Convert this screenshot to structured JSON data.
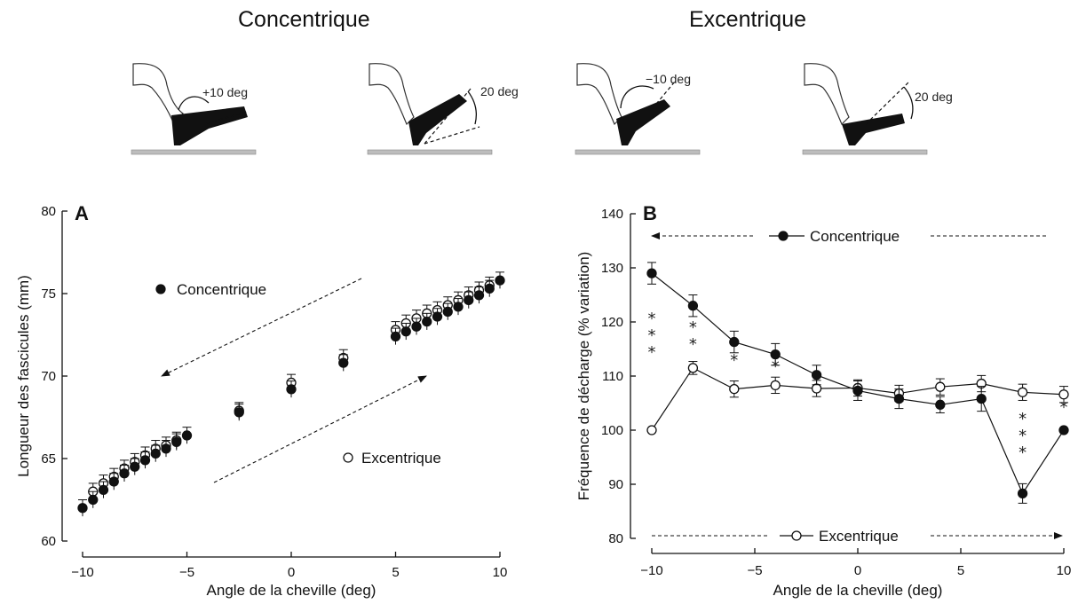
{
  "headings": {
    "left": "Concentrique",
    "right": "Excentrique"
  },
  "illustrations": [
    {
      "label": "+10 deg"
    },
    {
      "label": "20 deg"
    },
    {
      "label": "−10 deg"
    },
    {
      "label": "20 deg"
    }
  ],
  "chart_data": [
    {
      "type": "scatter",
      "panel_label": "A",
      "xlabel": "Angle de la cheville (deg)",
      "ylabel": "Longueur des fascicules (mm)",
      "xlim": [
        -10,
        10
      ],
      "ylim": [
        60,
        80
      ],
      "x_ticks": [
        -10,
        -5,
        0,
        5,
        10
      ],
      "x_tick_labels": [
        "−10",
        "−5",
        "0",
        "5",
        "10"
      ],
      "y_ticks": [
        60,
        65,
        70,
        75,
        80
      ],
      "y_tick_labels": [
        "60",
        "65",
        "70",
        "75",
        "80"
      ],
      "series": [
        {
          "name": "Concentrique",
          "marker": "filled",
          "points": [
            [
              -10,
              62.0
            ],
            [
              -9.5,
              62.5
            ],
            [
              -9,
              63.1
            ],
            [
              -8.5,
              63.6
            ],
            [
              -8,
              64.1
            ],
            [
              -7.5,
              64.5
            ],
            [
              -7,
              64.9
            ],
            [
              -6.5,
              65.3
            ],
            [
              -6,
              65.6
            ],
            [
              -5.5,
              66.0
            ],
            [
              -5,
              66.4
            ],
            [
              -2.5,
              67.8
            ],
            [
              0,
              69.2
            ],
            [
              2.5,
              70.8
            ],
            [
              5,
              72.4
            ],
            [
              5.5,
              72.7
            ],
            [
              6,
              73.0
            ],
            [
              6.5,
              73.3
            ],
            [
              7,
              73.6
            ],
            [
              7.5,
              73.9
            ],
            [
              8,
              74.2
            ],
            [
              8.5,
              74.6
            ],
            [
              9,
              74.9
            ],
            [
              9.5,
              75.3
            ],
            [
              10,
              75.8
            ]
          ]
        },
        {
          "name": "Excentrique",
          "marker": "open",
          "points": [
            [
              -9.5,
              63.0
            ],
            [
              -9,
              63.5
            ],
            [
              -8.5,
              63.9
            ],
            [
              -8,
              64.4
            ],
            [
              -7.5,
              64.8
            ],
            [
              -7,
              65.2
            ],
            [
              -6.5,
              65.6
            ],
            [
              -6,
              65.8
            ],
            [
              -5.5,
              66.1
            ],
            [
              -2.5,
              67.9
            ],
            [
              0,
              69.6
            ],
            [
              2.5,
              71.1
            ],
            [
              5,
              72.8
            ],
            [
              5.5,
              73.2
            ],
            [
              6,
              73.5
            ],
            [
              6.5,
              73.8
            ],
            [
              7,
              74.0
            ],
            [
              7.5,
              74.3
            ],
            [
              8,
              74.6
            ],
            [
              8.5,
              74.9
            ],
            [
              9,
              75.2
            ],
            [
              9.5,
              75.5
            ]
          ]
        }
      ],
      "error_bar": 0.5,
      "legend": [
        {
          "name": "Concentrique",
          "marker": "filled",
          "position": "upper-middle"
        },
        {
          "name": "Excentrique",
          "marker": "open",
          "position": "lower-right"
        }
      ],
      "arrows": [
        {
          "direction": "decreasing",
          "series": "Concentrique"
        },
        {
          "direction": "increasing",
          "series": "Excentrique"
        }
      ],
      "grid": false
    },
    {
      "type": "line",
      "panel_label": "B",
      "xlabel": "Angle de la cheville (deg)",
      "ylabel": "Fréquence de décharge (% variation)",
      "xlim": [
        -10,
        10
      ],
      "ylim": [
        80,
        140
      ],
      "x_ticks": [
        -10,
        -5,
        0,
        5,
        10
      ],
      "x_tick_labels": [
        "−10",
        "−5",
        "0",
        "5",
        "10"
      ],
      "y_ticks": [
        80,
        90,
        100,
        110,
        120,
        130,
        140
      ],
      "y_tick_labels": [
        "80",
        "90",
        "100",
        "110",
        "120",
        "130",
        "140"
      ],
      "x": [
        -10,
        -8,
        -6,
        -4,
        -2,
        0,
        2,
        4,
        6,
        8,
        10
      ],
      "series": [
        {
          "name": "Concentrique",
          "marker": "filled",
          "values": [
            129.0,
            123.0,
            116.3,
            114.0,
            110.2,
            107.3,
            105.8,
            104.7,
            105.8,
            88.3,
            100.0
          ],
          "errors": [
            2.0,
            2.0,
            2.0,
            2.0,
            1.8,
            1.8,
            1.8,
            1.5,
            2.3,
            1.8,
            0
          ]
        },
        {
          "name": "Excentrique",
          "marker": "open",
          "values": [
            100.0,
            111.5,
            107.6,
            108.3,
            107.7,
            107.8,
            106.8,
            108.0,
            108.6,
            107.0,
            106.6
          ],
          "errors": [
            0,
            1.2,
            1.5,
            1.5,
            1.5,
            1.5,
            1.5,
            1.5,
            1.5,
            1.5,
            1.5
          ]
        }
      ],
      "significance": [
        {
          "x": -10,
          "label": "***"
        },
        {
          "x": -8,
          "label": "**"
        },
        {
          "x": -6,
          "label": "*"
        },
        {
          "x": -4,
          "label": "*"
        },
        {
          "x": 8,
          "label": "***"
        },
        {
          "x": 10,
          "label": "*"
        }
      ],
      "legend": [
        {
          "name": "Concentrique",
          "marker": "filled",
          "position": "top"
        },
        {
          "name": "Excentrique",
          "marker": "open",
          "position": "bottom"
        }
      ],
      "arrows": [
        {
          "direction": "left",
          "series": "Concentrique"
        },
        {
          "direction": "right",
          "series": "Excentrique"
        }
      ],
      "grid": false
    }
  ]
}
